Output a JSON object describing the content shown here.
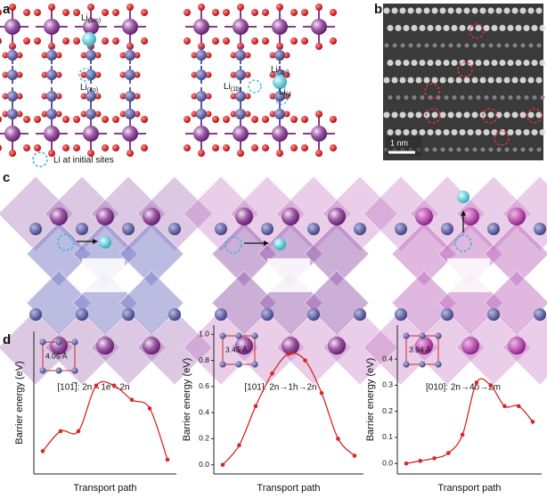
{
  "panel_labels": [
    "a",
    "b",
    "c",
    "d"
  ],
  "panel_a": {
    "labels": [
      {
        "main": "Li",
        "sub": "(2m)"
      },
      {
        "main": "Li",
        "sub": "(4o)"
      },
      {
        "main": "Li",
        "sub": "(1b)"
      },
      {
        "main": "Li",
        "sub": "(2n)"
      },
      {
        "main": "Li",
        "sub": "(4"
      }
    ],
    "legend": "Li at initial sites"
  },
  "panel_b": {
    "scale_bar": "1 nm"
  },
  "panel_c": {
    "captions": [
      "[101̅]: 2n→1e→2n",
      "[101]: 2n→1h→2n",
      "[010]: 2n→4o→2m"
    ]
  },
  "chart_data": [
    {
      "type": "line",
      "y_label": "Barrier energy (eV)",
      "x_label": "Transport path",
      "annotation": "4.05 Å",
      "color": "#d62728",
      "values": [
        0,
        0.07,
        0.07,
        0.23,
        0.23,
        0.18,
        0.15,
        -0.03
      ],
      "ylim": [
        -0.08,
        0.42
      ]
    },
    {
      "type": "line",
      "y_label": "Barrier energy (eV)",
      "x_label": "Transport path",
      "annotation": "3.45 Å",
      "color": "#d62728",
      "values": [
        0,
        0.15,
        0.45,
        0.7,
        0.85,
        0.8,
        0.55,
        0.2,
        0.07
      ],
      "ylim": [
        -0.07,
        1.07
      ],
      "yticks": [
        {
          "value": 0,
          "label": "0.0"
        },
        {
          "value": 0.2,
          "label": "0.2"
        },
        {
          "value": 0.4,
          "label": "0.4"
        },
        {
          "value": 0.6,
          "label": "0.6"
        },
        {
          "value": 0.8,
          "label": "0.8"
        },
        {
          "value": 1,
          "label": "1.0"
        }
      ]
    },
    {
      "type": "line",
      "y_label": "Barrier energy (eV)",
      "x_label": "Transport path",
      "annotation": "3.94 Å",
      "color": "#d62728",
      "values": [
        0,
        0.01,
        0.02,
        0.04,
        0.11,
        0.31,
        0.3,
        0.22,
        0.22,
        0.16
      ],
      "ylim": [
        -0.04,
        0.53
      ],
      "yticks": [
        {
          "value": 0,
          "label": "0.0"
        },
        {
          "value": 0.1,
          "label": "0.1"
        },
        {
          "value": 0.2,
          "label": "0.2"
        },
        {
          "value": 0.3,
          "label": "0.3"
        },
        {
          "value": 0.4,
          "label": "0.4"
        }
      ]
    }
  ]
}
